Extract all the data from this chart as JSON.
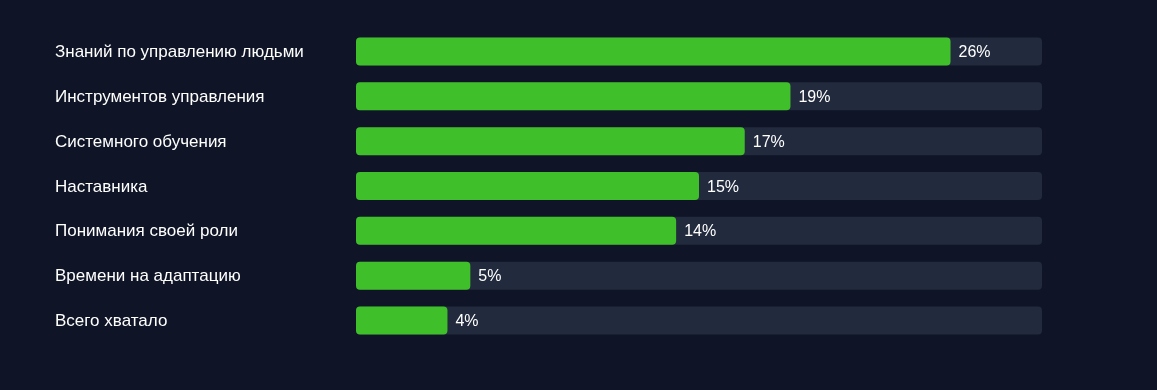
{
  "chart_data": {
    "type": "bar",
    "orientation": "horizontal",
    "categories": [
      "Знаний по управлению людьми",
      "Инструментов управления",
      "Системного обучения",
      "Наставника",
      "Понимания своей роли",
      "Времени на адаптацию",
      "Всего хватало"
    ],
    "values": [
      26,
      19,
      17,
      15,
      14,
      5,
      4
    ],
    "value_labels": [
      "26%",
      "19%",
      "17%",
      "15%",
      "14%",
      "5%",
      "4%"
    ],
    "color": "#3fbf2a"
  }
}
